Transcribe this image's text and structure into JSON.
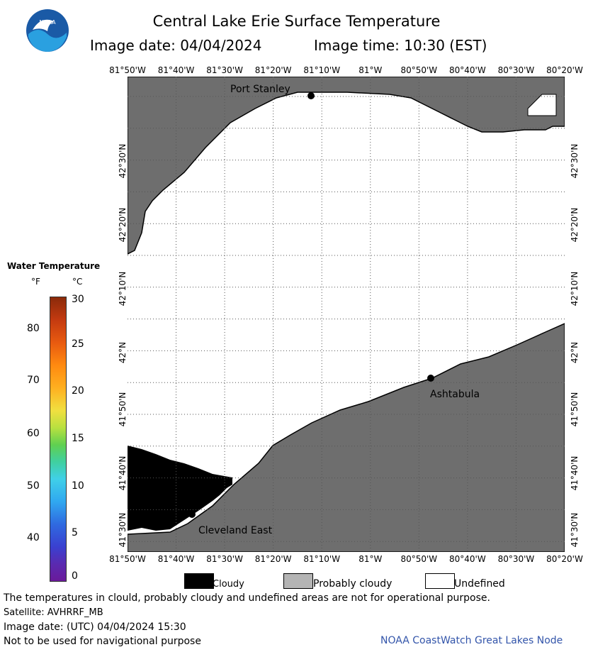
{
  "header": {
    "title": "Central Lake Erie Surface Temperature",
    "image_date": "Image date: 04/04/2024",
    "image_time": "Image time: 10:30 (EST)"
  },
  "logo": {
    "text": "NOAA",
    "color": "#1a5aa6"
  },
  "map": {
    "lon_labels": [
      "81°50'W",
      "81°40'W",
      "81°30'W",
      "81°20'W",
      "81°10'W",
      "81°W",
      "80°50'W",
      "80°40'W",
      "80°30'W",
      "80°20'W"
    ],
    "lat_labels": [
      "42°30'N",
      "42°20'N",
      "42°10'N",
      "42°N",
      "41°50'N",
      "41°40'N",
      "41°30'N"
    ],
    "land_color": "#6e6e6e",
    "cloud_color": "#000000",
    "water_color": "#ffffff",
    "places": {
      "port_stanley": "Port Stanley",
      "ashtabula": "Ashtabula",
      "cleveland_east": "Cleveland East"
    }
  },
  "legend": {
    "title": "Water Temperature",
    "unit_f": "°F",
    "unit_c": "°C",
    "f_ticks": [
      "80",
      "70",
      "60",
      "50",
      "40"
    ],
    "c_ticks": [
      "30",
      "25",
      "20",
      "15",
      "10",
      "5",
      "0"
    ]
  },
  "key": {
    "cloudy": "Cloudy",
    "probably_cloudy": "Probably cloudy",
    "undefined": "Undefined",
    "cloudy_color": "#000000",
    "probably_cloudy_color": "#b4b4b4",
    "undefined_color": "#ffffff"
  },
  "footer": {
    "note": "The temperatures in clould, probably cloudy and undefined areas are not for operational purpose.",
    "satellite": "Satellite: AVHRRF_MB",
    "utc_date": "Image date: (UTC) 04/04/2024   15:30",
    "nav_warning": "Not to be used for navigational purpose",
    "credit": "NOAA CoastWatch Great Lakes Node"
  }
}
